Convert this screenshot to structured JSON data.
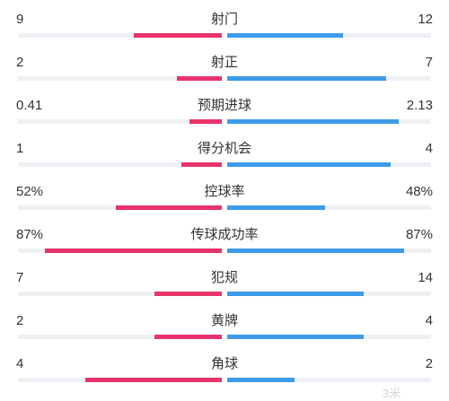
{
  "colors": {
    "home": "#e8336b",
    "away": "#3d9be9",
    "track": "#eef0f4",
    "text": "#333333"
  },
  "stats": [
    {
      "label": "射门",
      "home": "9",
      "away": "12",
      "home_share": 0.43,
      "away_share": 0.57
    },
    {
      "label": "射正",
      "home": "2",
      "away": "7",
      "home_share": 0.22,
      "away_share": 0.78
    },
    {
      "label": "预期进球",
      "home": "0.41",
      "away": "2.13",
      "home_share": 0.16,
      "away_share": 0.84
    },
    {
      "label": "得分机会",
      "home": "1",
      "away": "4",
      "home_share": 0.2,
      "away_share": 0.8
    },
    {
      "label": "控球率",
      "home": "52%",
      "away": "48%",
      "home_share": 0.52,
      "away_share": 0.48
    },
    {
      "label": "传球成功率",
      "home": "87%",
      "away": "87%",
      "home_share": 0.87,
      "away_share": 0.87
    },
    {
      "label": "犯规",
      "home": "7",
      "away": "14",
      "home_share": 0.33,
      "away_share": 0.67
    },
    {
      "label": "黄牌",
      "home": "2",
      "away": "4",
      "home_share": 0.33,
      "away_share": 0.67
    },
    {
      "label": "角球",
      "home": "4",
      "away": "2",
      "home_share": 0.67,
      "away_share": 0.33
    }
  ],
  "watermark": "3米"
}
